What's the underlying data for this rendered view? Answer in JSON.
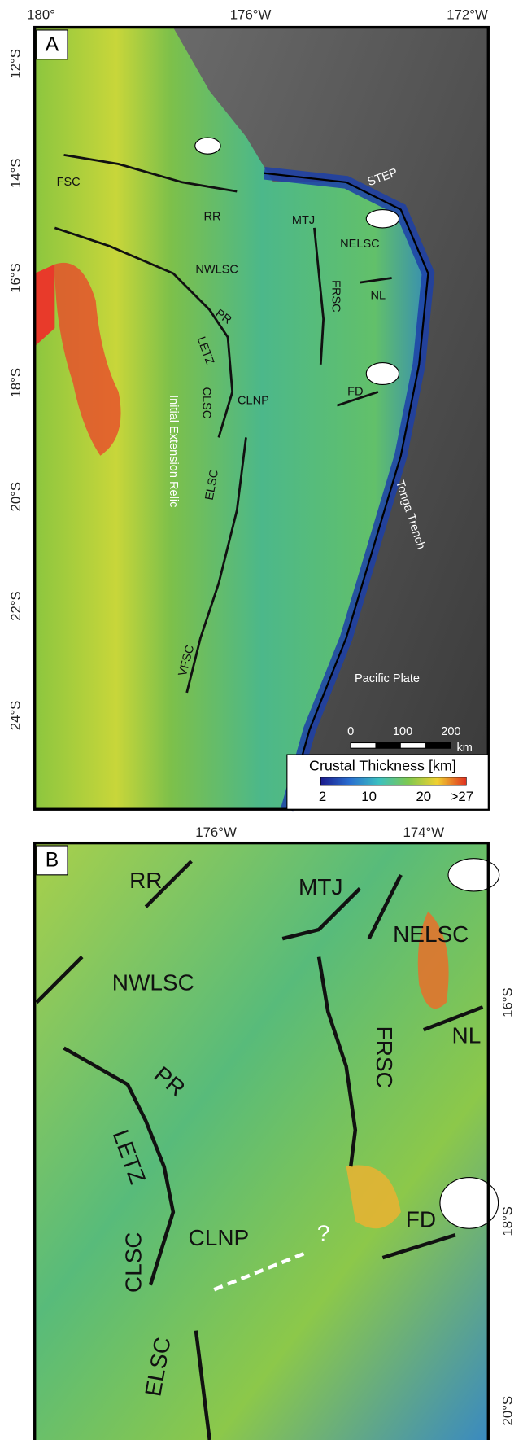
{
  "panel_a": {
    "label": "A",
    "top_ticks": [
      "180°",
      "176°W",
      "172°W"
    ],
    "left_ticks": [
      "12°S",
      "14°S",
      "16°S",
      "18°S",
      "20°S",
      "22°S",
      "24°S"
    ],
    "features": [
      "FSC",
      "RR",
      "MTJ",
      "NELSC",
      "STEP",
      "NWLSC",
      "FRSC",
      "NL",
      "PR",
      "LETZ",
      "CLSC",
      "CLNP",
      "FD",
      "Initial Extension Relic",
      "ELSC",
      "VFSC",
      "Tonga Trench",
      "Pacific Plate"
    ],
    "scale_bar": [
      "0",
      "100",
      "200",
      "km"
    ],
    "colorbar": {
      "title": "Crustal Thickness [km]",
      "ticks": [
        "2",
        "10",
        "20",
        ">27"
      ]
    }
  },
  "panel_b": {
    "label": "B",
    "top_ticks": [
      "176°W",
      "174°W"
    ],
    "right_ticks": [
      "16°S",
      "18°S",
      "20°S"
    ],
    "features": [
      "RR",
      "MTJ",
      "NELSC",
      "NWLSC",
      "FRSC",
      "NL",
      "PR",
      "LETZ",
      "CLSC",
      "CLNP",
      "FD",
      "?",
      "ELSC"
    ]
  }
}
